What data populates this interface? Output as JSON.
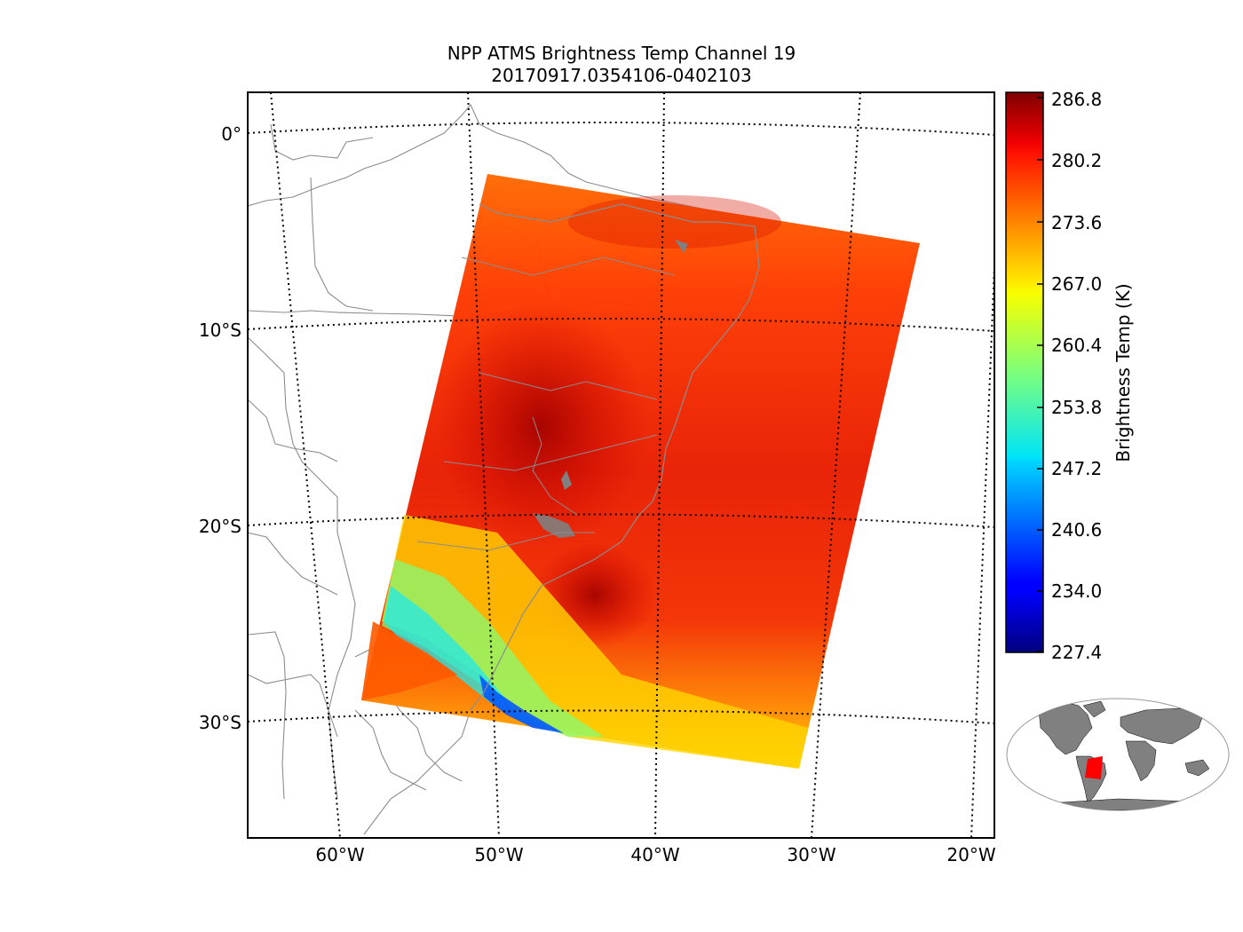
{
  "title": {
    "line1": "NPP ATMS Brightness Temp Channel 19",
    "line2": "20170917.0354106-0402103"
  },
  "map": {
    "latitude_labels": [
      "0°",
      "10°S",
      "20°S",
      "30°S"
    ],
    "longitude_labels": [
      "60°W",
      "50°W",
      "40°W",
      "30°W",
      "20°W"
    ],
    "land_color": "#808080",
    "outline_color": "#8c8c8c"
  },
  "colorbar": {
    "label": "Brightness Temp (K)",
    "tick_labels": [
      "286.8",
      "280.2",
      "273.6",
      "267.0",
      "260.4",
      "253.8",
      "247.2",
      "240.6",
      "234.0",
      "227.4"
    ],
    "vmin": 227.4,
    "vmax": 286.8,
    "colormap": "jet"
  },
  "inset": {
    "swath_color": "#ff0000",
    "land_color": "#808080"
  }
}
